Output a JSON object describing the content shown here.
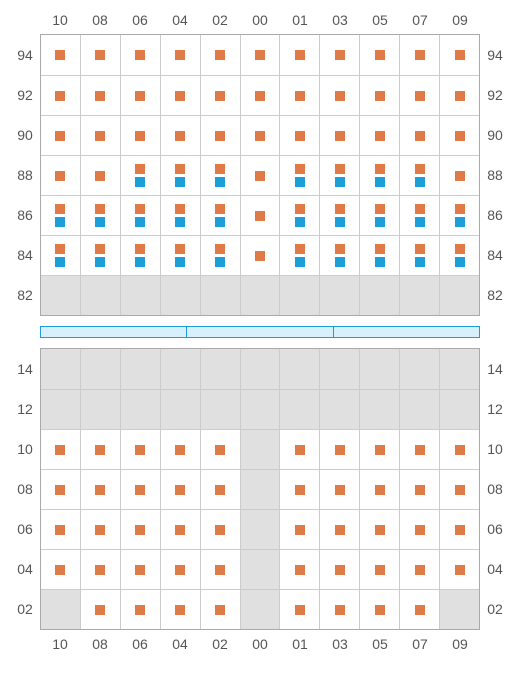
{
  "colors": {
    "orange": "#e07a47",
    "blue": "#1a9fd8",
    "emptyBg": "#e0e0e0",
    "gridLine": "#cccccc",
    "border": "#aaaaaa",
    "label": "#555555",
    "dividerBg": "#d7f0fb"
  },
  "columns": [
    "10",
    "08",
    "06",
    "04",
    "02",
    "00",
    "01",
    "03",
    "05",
    "07",
    "09"
  ],
  "dividerSegments": 3,
  "upper": {
    "rowLabels": [
      "94",
      "92",
      "90",
      "88",
      "86",
      "84",
      "82"
    ],
    "cells": [
      [
        [
          "o"
        ],
        [
          "o"
        ],
        [
          "o"
        ],
        [
          "o"
        ],
        [
          "o"
        ],
        [
          "o"
        ],
        [
          "o"
        ],
        [
          "o"
        ],
        [
          "o"
        ],
        [
          "o"
        ],
        [
          "o"
        ]
      ],
      [
        [
          "o"
        ],
        [
          "o"
        ],
        [
          "o"
        ],
        [
          "o"
        ],
        [
          "o"
        ],
        [
          "o"
        ],
        [
          "o"
        ],
        [
          "o"
        ],
        [
          "o"
        ],
        [
          "o"
        ],
        [
          "o"
        ]
      ],
      [
        [
          "o"
        ],
        [
          "o"
        ],
        [
          "o"
        ],
        [
          "o"
        ],
        [
          "o"
        ],
        [
          "o"
        ],
        [
          "o"
        ],
        [
          "o"
        ],
        [
          "o"
        ],
        [
          "o"
        ],
        [
          "o"
        ]
      ],
      [
        [
          "o"
        ],
        [
          "o"
        ],
        [
          "o",
          "b"
        ],
        [
          "o",
          "b"
        ],
        [
          "o",
          "b"
        ],
        [
          "o"
        ],
        [
          "o",
          "b"
        ],
        [
          "o",
          "b"
        ],
        [
          "o",
          "b"
        ],
        [
          "o",
          "b"
        ],
        [
          "o"
        ]
      ],
      [
        [
          "o",
          "b"
        ],
        [
          "o",
          "b"
        ],
        [
          "o",
          "b"
        ],
        [
          "o",
          "b"
        ],
        [
          "o",
          "b"
        ],
        [
          "o"
        ],
        [
          "o",
          "b"
        ],
        [
          "o",
          "b"
        ],
        [
          "o",
          "b"
        ],
        [
          "o",
          "b"
        ],
        [
          "o",
          "b"
        ]
      ],
      [
        [
          "o",
          "b"
        ],
        [
          "o",
          "b"
        ],
        [
          "o",
          "b"
        ],
        [
          "o",
          "b"
        ],
        [
          "o",
          "b"
        ],
        [
          "o"
        ],
        [
          "o",
          "b"
        ],
        [
          "o",
          "b"
        ],
        [
          "o",
          "b"
        ],
        [
          "o",
          "b"
        ],
        [
          "o",
          "b"
        ]
      ],
      [
        [],
        [],
        [],
        [],
        [],
        [],
        [],
        [],
        [],
        [],
        []
      ]
    ]
  },
  "lower": {
    "rowLabels": [
      "14",
      "12",
      "10",
      "08",
      "06",
      "04",
      "02"
    ],
    "cells": [
      [
        [],
        [],
        [],
        [],
        [],
        [],
        [],
        [],
        [],
        [],
        []
      ],
      [
        [],
        [],
        [],
        [],
        [],
        [],
        [],
        [],
        [],
        [],
        []
      ],
      [
        [
          "o"
        ],
        [
          "o"
        ],
        [
          "o"
        ],
        [
          "o"
        ],
        [
          "o"
        ],
        [],
        [
          "o"
        ],
        [
          "o"
        ],
        [
          "o"
        ],
        [
          "o"
        ],
        [
          "o"
        ]
      ],
      [
        [
          "o"
        ],
        [
          "o"
        ],
        [
          "o"
        ],
        [
          "o"
        ],
        [
          "o"
        ],
        [],
        [
          "o"
        ],
        [
          "o"
        ],
        [
          "o"
        ],
        [
          "o"
        ],
        [
          "o"
        ]
      ],
      [
        [
          "o"
        ],
        [
          "o"
        ],
        [
          "o"
        ],
        [
          "o"
        ],
        [
          "o"
        ],
        [],
        [
          "o"
        ],
        [
          "o"
        ],
        [
          "o"
        ],
        [
          "o"
        ],
        [
          "o"
        ]
      ],
      [
        [
          "o"
        ],
        [
          "o"
        ],
        [
          "o"
        ],
        [
          "o"
        ],
        [
          "o"
        ],
        [],
        [
          "o"
        ],
        [
          "o"
        ],
        [
          "o"
        ],
        [
          "o"
        ],
        [
          "o"
        ]
      ],
      [
        [],
        [
          "o"
        ],
        [
          "o"
        ],
        [
          "o"
        ],
        [
          "o"
        ],
        [],
        [
          "o"
        ],
        [
          "o"
        ],
        [
          "o"
        ],
        [
          "o"
        ],
        []
      ]
    ]
  }
}
